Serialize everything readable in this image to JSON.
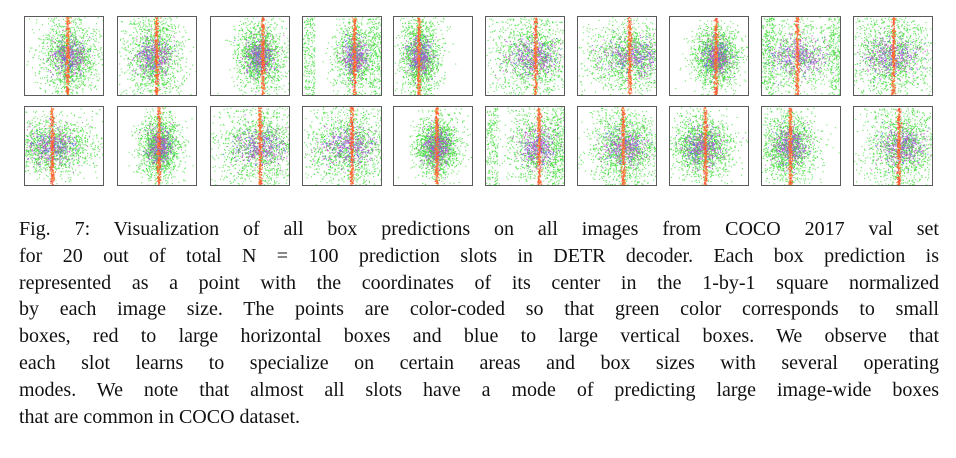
{
  "figure": {
    "panel_count": 20,
    "rows": 2,
    "cols": 10,
    "colors": {
      "small_boxes": "#22dd22",
      "large_horizontal": "#ff3333",
      "large_vertical": "#3366ff",
      "border": "#5a5a5a"
    }
  },
  "caption": {
    "lines": [
      "Fig. 7: Visualization of all box predictions on all images from COCO 2017 val set",
      "for 20 out of total N = 100 prediction slots in DETR decoder. Each box prediction is",
      "represented as a point with the coordinates of its center in the 1-by-1 square normalized",
      "by each image size. The points are color-coded so that green color corresponds to small",
      "boxes, red to large horizontal boxes and blue to large vertical boxes. We observe that",
      "each slot learns to specialize on certain areas and box sizes with several operating",
      "modes. We note that almost all slots have a mode of predicting large image-wide boxes",
      "that are common in COCO dataset."
    ]
  }
}
